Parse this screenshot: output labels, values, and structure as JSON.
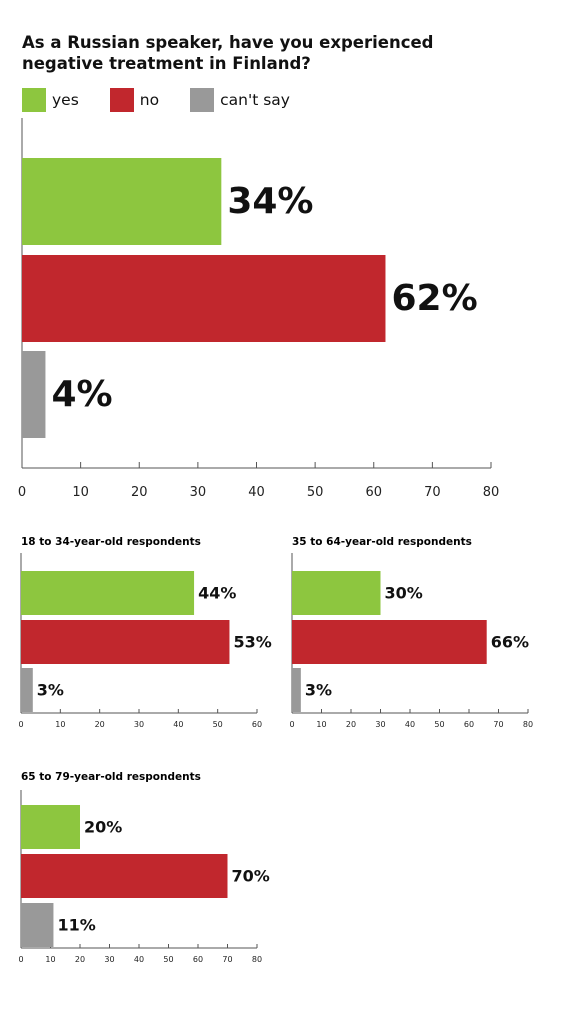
{
  "title": "As a Russian speaker, have you experienced negative treatment in Finland?",
  "legend": [
    {
      "label": "yes",
      "color": "#8dc63f"
    },
    {
      "label": "no",
      "color": "#c1272d"
    },
    {
      "label": "can't say",
      "color": "#999999"
    }
  ],
  "chart_data": [
    {
      "type": "bar",
      "orientation": "horizontal",
      "title": "",
      "categories": [
        "yes",
        "no",
        "can't say"
      ],
      "values": [
        34,
        62,
        4
      ],
      "value_labels": [
        "34%",
        "62%",
        "4%"
      ],
      "xlim": [
        0,
        80
      ],
      "xticks": [
        0,
        10,
        20,
        30,
        40,
        50,
        60,
        70,
        80
      ],
      "colors": [
        "#8dc63f",
        "#c1272d",
        "#999999"
      ]
    },
    {
      "type": "bar",
      "orientation": "horizontal",
      "title": "18 to 34-year-old respondents",
      "categories": [
        "yes",
        "no",
        "can't say"
      ],
      "values": [
        44,
        53,
        3
      ],
      "value_labels": [
        "44%",
        "53%",
        "3%"
      ],
      "xlim": [
        0,
        60
      ],
      "xticks": [
        0,
        10,
        20,
        30,
        40,
        50,
        60
      ],
      "colors": [
        "#8dc63f",
        "#c1272d",
        "#999999"
      ]
    },
    {
      "type": "bar",
      "orientation": "horizontal",
      "title": "35 to 64-year-old respondents",
      "categories": [
        "yes",
        "no",
        "can't say"
      ],
      "values": [
        30,
        66,
        3
      ],
      "value_labels": [
        "30%",
        "66%",
        "3%"
      ],
      "xlim": [
        0,
        80
      ],
      "xticks": [
        0,
        10,
        20,
        30,
        40,
        50,
        60,
        70,
        80
      ],
      "colors": [
        "#8dc63f",
        "#c1272d",
        "#999999"
      ]
    },
    {
      "type": "bar",
      "orientation": "horizontal",
      "title": "65 to 79-year-old respondents",
      "categories": [
        "yes",
        "no",
        "can't say"
      ],
      "values": [
        20,
        70,
        11
      ],
      "value_labels": [
        "20%",
        "70%",
        "11%"
      ],
      "xlim": [
        0,
        80
      ],
      "xticks": [
        0,
        10,
        20,
        30,
        40,
        50,
        60,
        70,
        80
      ],
      "colors": [
        "#8dc63f",
        "#c1272d",
        "#999999"
      ]
    }
  ]
}
